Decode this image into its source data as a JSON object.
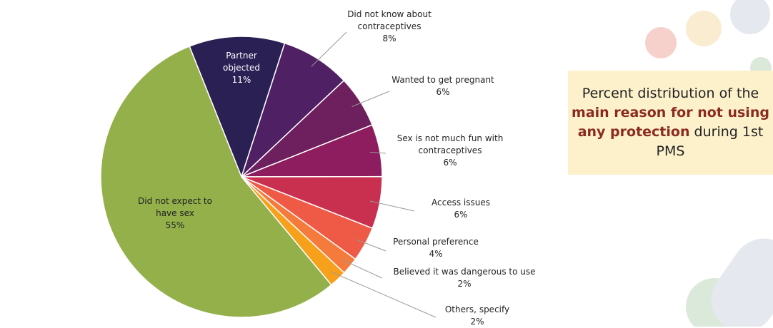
{
  "chart_data": {
    "type": "pie",
    "categories": [
      "Partner objected",
      "Did not know about contraceptives",
      "Wanted to get pregnant",
      "Sex is not much fun with contraceptives",
      "Access issues",
      "Personal preference",
      "Believed it was dangerous to use",
      "Others, specify",
      "Did not expect to have sex"
    ],
    "values": [
      11,
      8,
      6,
      6,
      6,
      4,
      2,
      2,
      55
    ],
    "value_labels": [
      "11%",
      "8%",
      "6%",
      "6%",
      "6%",
      "4%",
      "2%",
      "2%",
      "55%"
    ],
    "colors": [
      "#2b2054",
      "#4f2063",
      "#6e1f5e",
      "#8e1d5f",
      "#c9304f",
      "#ef5a47",
      "#f47b3c",
      "#f7a01b",
      "#93b04a"
    ]
  },
  "note": {
    "parts": [
      "Percent distribution of the ",
      "main reason for not using any protection",
      " during 1st PMS"
    ]
  }
}
